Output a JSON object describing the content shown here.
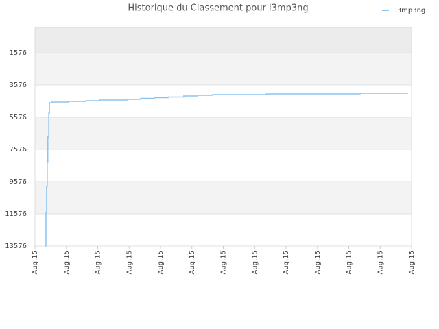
{
  "chart_data": {
    "type": "line",
    "title": "Historique du Classement pour l3mp3ng",
    "x": [
      0.33,
      0.35,
      0.37,
      0.39,
      0.41,
      0.44,
      0.46,
      0.52,
      1.07,
      1.62,
      2.05,
      2.93,
      3.37,
      3.8,
      4.24,
      4.74,
      5.18,
      5.66,
      7.37,
      10.36,
      11.89
    ],
    "series": [
      {
        "name": "l3mp3ng",
        "color": "#8ec3ef",
        "values": [
          13576,
          11490,
          9873,
          8384,
          6809,
          5320,
          4681,
          4639,
          4596,
          4554,
          4511,
          4469,
          4405,
          4362,
          4320,
          4256,
          4213,
          4171,
          4128,
          4086,
          4086
        ]
      }
    ],
    "step": true,
    "xlim": [
      0,
      12
    ],
    "xticks": [
      {
        "value": 0,
        "label": "Aug.15"
      },
      {
        "value": 1,
        "label": "Aug.15"
      },
      {
        "value": 2,
        "label": "Aug.15"
      },
      {
        "value": 3,
        "label": "Aug.15"
      },
      {
        "value": 4,
        "label": "Aug.15"
      },
      {
        "value": 5,
        "label": "Aug.15"
      },
      {
        "value": 6,
        "label": "Aug.15"
      },
      {
        "value": 7,
        "label": "Aug.15"
      },
      {
        "value": 8,
        "label": "Aug.15"
      },
      {
        "value": 9,
        "label": "Aug.15"
      },
      {
        "value": 10,
        "label": "Aug.15"
      },
      {
        "value": 11,
        "label": "Aug.15"
      },
      {
        "value": 12,
        "label": "Aug.15"
      }
    ],
    "ylim": [
      13576,
      0
    ],
    "yticks": [
      1576,
      3576,
      5576,
      7576,
      9576,
      11576,
      13576
    ],
    "grid": true,
    "legend": "top-right"
  }
}
